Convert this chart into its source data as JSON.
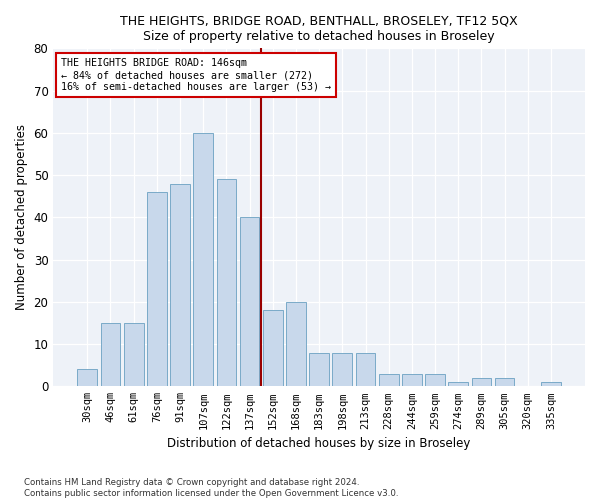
{
  "title": "THE HEIGHTS, BRIDGE ROAD, BENTHALL, BROSELEY, TF12 5QX",
  "subtitle": "Size of property relative to detached houses in Broseley",
  "xlabel": "Distribution of detached houses by size in Broseley",
  "ylabel": "Number of detached properties",
  "bar_color": "#c8d8eb",
  "bar_edge_color": "#7aaac8",
  "categories": [
    "30sqm",
    "46sqm",
    "61sqm",
    "76sqm",
    "91sqm",
    "107sqm",
    "122sqm",
    "137sqm",
    "152sqm",
    "168sqm",
    "183sqm",
    "198sqm",
    "213sqm",
    "228sqm",
    "244sqm",
    "259sqm",
    "274sqm",
    "289sqm",
    "305sqm",
    "320sqm",
    "335sqm"
  ],
  "values": [
    4,
    15,
    15,
    46,
    48,
    60,
    49,
    40,
    18,
    20,
    8,
    8,
    8,
    3,
    3,
    3,
    1,
    2,
    2,
    0,
    1
  ],
  "marker_bar_index": 8,
  "marker_label": "THE HEIGHTS BRIDGE ROAD: 146sqm",
  "annotation_line1": "← 84% of detached houses are smaller (272)",
  "annotation_line2": "16% of semi-detached houses are larger (53) →",
  "ylim": [
    0,
    80
  ],
  "yticks": [
    0,
    10,
    20,
    30,
    40,
    50,
    60,
    70,
    80
  ],
  "footnote1": "Contains HM Land Registry data © Crown copyright and database right 2024.",
  "footnote2": "Contains public sector information licensed under the Open Government Licence v3.0.",
  "background_color": "#ffffff",
  "plot_bg_color": "#eef2f8"
}
